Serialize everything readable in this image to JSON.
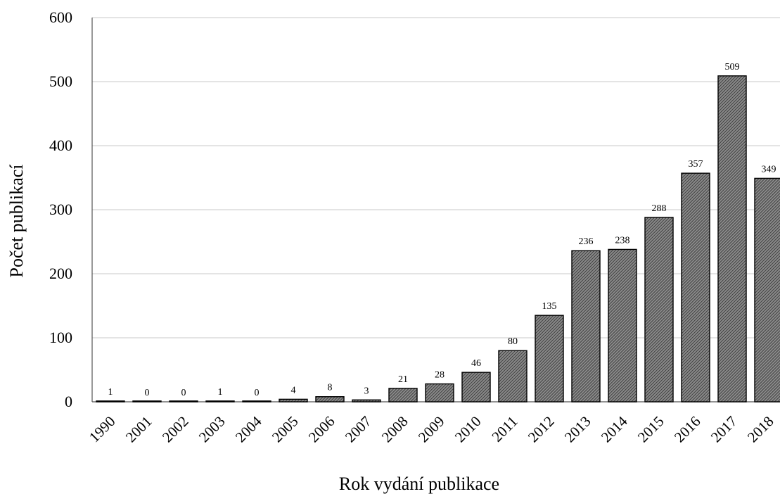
{
  "chart_data": {
    "type": "bar",
    "categories": [
      "1990",
      "2001",
      "2002",
      "2003",
      "2004",
      "2005",
      "2006",
      "2007",
      "2008",
      "2009",
      "2010",
      "2011",
      "2012",
      "2013",
      "2014",
      "2015",
      "2016",
      "2017",
      "2018"
    ],
    "values": [
      1,
      0,
      0,
      1,
      0,
      4,
      8,
      3,
      21,
      28,
      46,
      80,
      135,
      236,
      238,
      288,
      357,
      509,
      349
    ],
    "xlabel": "Rok vydání publikace",
    "ylabel": "Počet publikací",
    "ylim": [
      0,
      600
    ],
    "yticks": [
      0,
      100,
      200,
      300,
      400,
      500,
      600
    ],
    "grid": true,
    "bar_color": "#4a4a4a",
    "data_labels": true
  }
}
